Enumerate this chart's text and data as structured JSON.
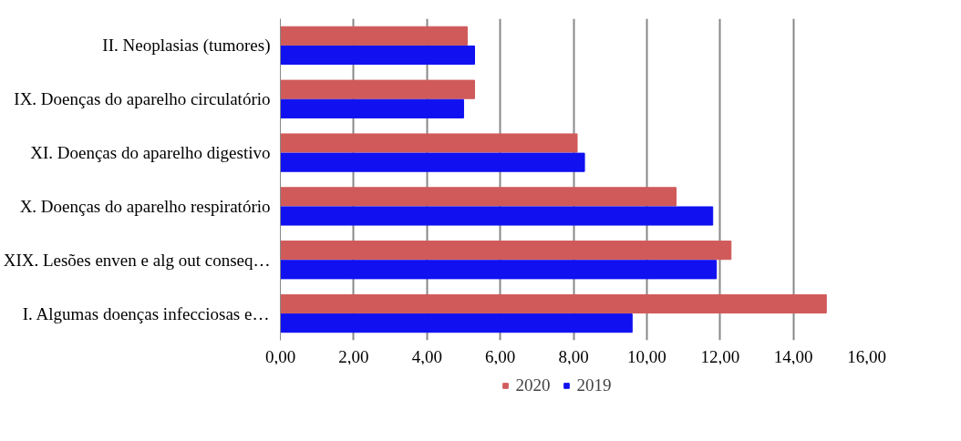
{
  "chart_data": {
    "type": "bar",
    "orientation": "horizontal",
    "categories": [
      "II. Neoplasias (tumores)",
      "IX. Doenças do aparelho circulatório",
      "XI. Doenças do aparelho digestivo",
      "X. Doenças do aparelho respiratório",
      "XIX. Lesões enven e alg out conseq…",
      "I. Algumas doenças infecciosas e…"
    ],
    "series": [
      {
        "name": "2020",
        "color": "#d05a5a",
        "values": [
          5.1,
          5.3,
          8.1,
          10.8,
          12.3,
          14.9
        ]
      },
      {
        "name": "2019",
        "color": "#1010f0",
        "values": [
          5.3,
          5.0,
          8.3,
          11.8,
          11.9,
          9.6
        ]
      }
    ],
    "xlim": [
      0,
      16
    ],
    "xticks": [
      {
        "value": 0,
        "label": "0,00"
      },
      {
        "value": 2,
        "label": "2,00"
      },
      {
        "value": 4,
        "label": "4,00"
      },
      {
        "value": 6,
        "label": "6,00"
      },
      {
        "value": 8,
        "label": "8,00"
      },
      {
        "value": 10,
        "label": "10,00"
      },
      {
        "value": 12,
        "label": "12,00"
      },
      {
        "value": 14,
        "label": "14,00"
      },
      {
        "value": 16,
        "label": "16,00"
      }
    ],
    "grid": "x",
    "legend": "bottom"
  }
}
